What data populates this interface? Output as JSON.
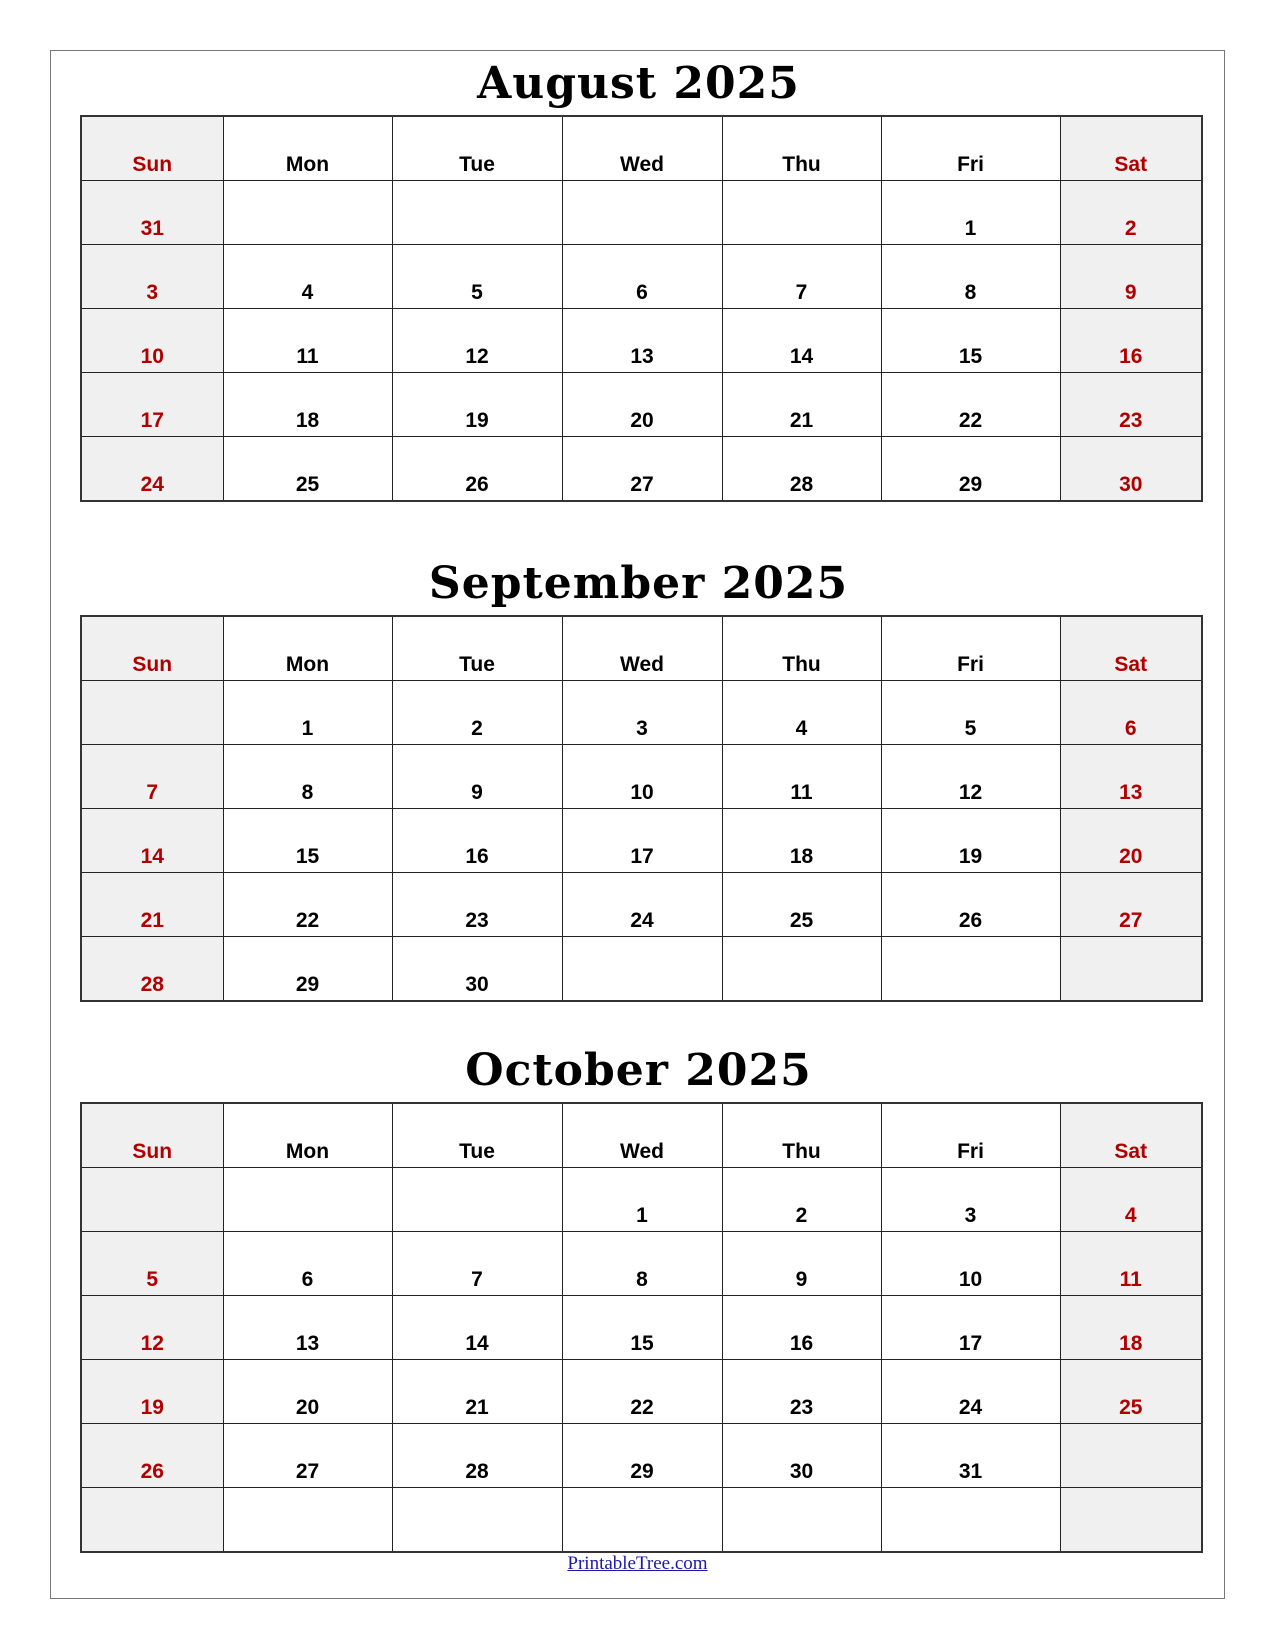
{
  "weekdays": [
    "Sun",
    "Mon",
    "Tue",
    "Wed",
    "Thu",
    "Fri",
    "Sat"
  ],
  "colors": {
    "weekend_text": "#b00000",
    "weekend_bg": "#f0f0f0",
    "link": "#1a1aa6"
  },
  "months": [
    {
      "title": "August 2025",
      "weeks": [
        [
          "31",
          "",
          "",
          "",
          "",
          "1",
          "2"
        ],
        [
          "3",
          "4",
          "5",
          "6",
          "7",
          "8",
          "9"
        ],
        [
          "10",
          "11",
          "12",
          "13",
          "14",
          "15",
          "16"
        ],
        [
          "17",
          "18",
          "19",
          "20",
          "21",
          "22",
          "23"
        ],
        [
          "24",
          "25",
          "26",
          "27",
          "28",
          "29",
          "30"
        ]
      ]
    },
    {
      "title": "September 2025",
      "weeks": [
        [
          "",
          "1",
          "2",
          "3",
          "4",
          "5",
          "6"
        ],
        [
          "7",
          "8",
          "9",
          "10",
          "11",
          "12",
          "13"
        ],
        [
          "14",
          "15",
          "16",
          "17",
          "18",
          "19",
          "20"
        ],
        [
          "21",
          "22",
          "23",
          "24",
          "25",
          "26",
          "27"
        ],
        [
          "28",
          "29",
          "30",
          "",
          "",
          "",
          ""
        ]
      ]
    },
    {
      "title": "October 2025",
      "weeks": [
        [
          "",
          "",
          "",
          "1",
          "2",
          "3",
          "4"
        ],
        [
          "5",
          "6",
          "7",
          "8",
          "9",
          "10",
          "11"
        ],
        [
          "12",
          "13",
          "14",
          "15",
          "16",
          "17",
          "18"
        ],
        [
          "19",
          "20",
          "21",
          "22",
          "23",
          "24",
          "25"
        ],
        [
          "26",
          "27",
          "28",
          "29",
          "30",
          "31",
          ""
        ],
        [
          "",
          "",
          "",
          "",
          "",
          "",
          ""
        ]
      ]
    }
  ],
  "footer": {
    "link_text": "PrintableTree.com"
  }
}
